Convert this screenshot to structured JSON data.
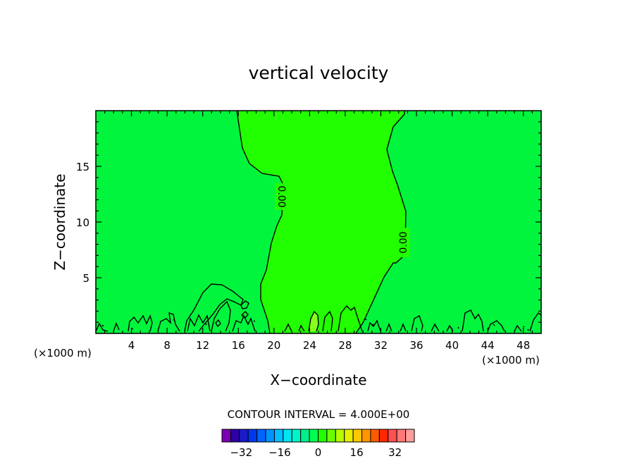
{
  "chart_data": {
    "type": "contour",
    "title": "vertical velocity",
    "xlabel": "X−coordinate",
    "ylabel": "Z−coordinate",
    "x_unit_left": "(×1000 m)",
    "x_unit_right": "(×1000 m)",
    "xlim": [
      0,
      50
    ],
    "ylim": [
      0,
      20
    ],
    "x_ticks": [
      4,
      8,
      12,
      16,
      20,
      24,
      28,
      32,
      36,
      40,
      44,
      48
    ],
    "y_ticks": [
      5,
      10,
      15
    ],
    "x_tick_labels": [
      "4",
      "8",
      "12",
      "16",
      "20",
      "24",
      "28",
      "32",
      "36",
      "40",
      "44",
      "48"
    ],
    "y_tick_labels": [
      "5",
      "10",
      "15"
    ],
    "contour_labels": [
      "0.00",
      "0.00"
    ],
    "contour_interval_text": "CONTOUR INTERVAL = 4.000E+00",
    "colorbar": {
      "tick_labels": [
        "−32",
        "−16",
        "0",
        "16",
        "32"
      ],
      "tick_values": [
        -32,
        -16,
        0,
        16,
        32
      ],
      "range": [
        -40,
        40
      ],
      "colors": [
        "#7a00b4",
        "#2c00a8",
        "#1a1acd",
        "#0038f0",
        "#0064ff",
        "#0092ff",
        "#00bfff",
        "#00e6f2",
        "#00f5c8",
        "#00f08c",
        "#00ff50",
        "#22ff00",
        "#6cff00",
        "#b4ff00",
        "#e6f000",
        "#ffc800",
        "#ff9600",
        "#ff5a00",
        "#ff2800",
        "#ff5050",
        "#ff7878",
        "#ff9c9c"
      ]
    },
    "fill_colors": {
      "background": "#00f53c",
      "positive": "#22ff00",
      "patch": "#88ff20"
    }
  }
}
